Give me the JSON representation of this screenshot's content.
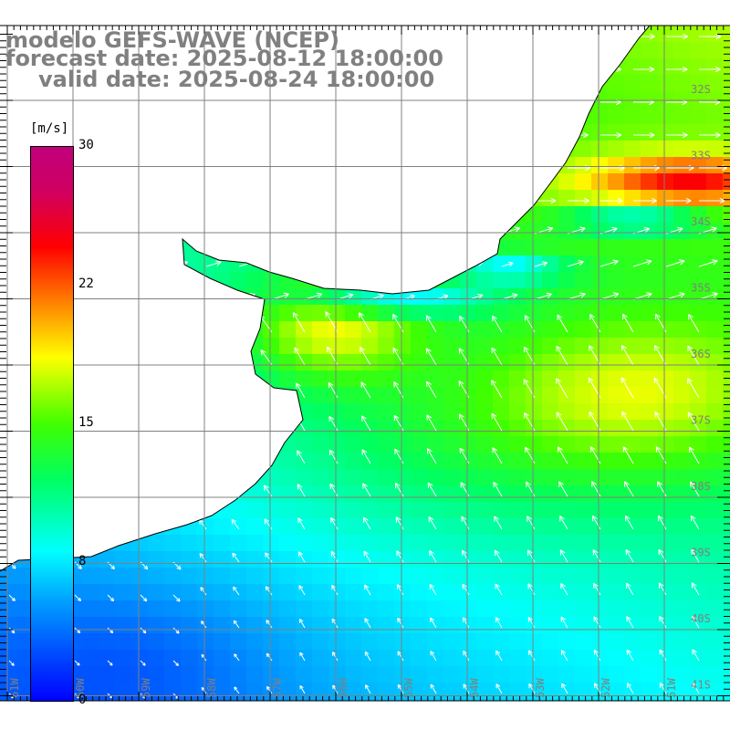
{
  "header": {
    "model": "modelo GEFS-WAVE (NCEP)",
    "forecast": "forecast date: 2025-08-12 18:00:00",
    "valid": "valid date: 2025-08-24 18:00:00"
  },
  "colorbar": {
    "unit": "[m/s]",
    "ticks": [
      "30",
      "22",
      "15",
      "8",
      "0"
    ],
    "tick_values": [
      30,
      22,
      15,
      8,
      0
    ]
  },
  "axes": {
    "lat_labels": [
      "32S",
      "33S",
      "34S",
      "35S",
      "36S",
      "37S",
      "38S",
      "39S",
      "40S",
      "41S"
    ],
    "lon_labels": [
      "61W",
      "60W",
      "59W",
      "58W",
      "57W",
      "56W",
      "55W",
      "54W",
      "53W",
      "52W",
      "51W"
    ]
  },
  "colors": {
    "grid": "#808080",
    "label": "#808080",
    "coast": "#000000"
  }
}
